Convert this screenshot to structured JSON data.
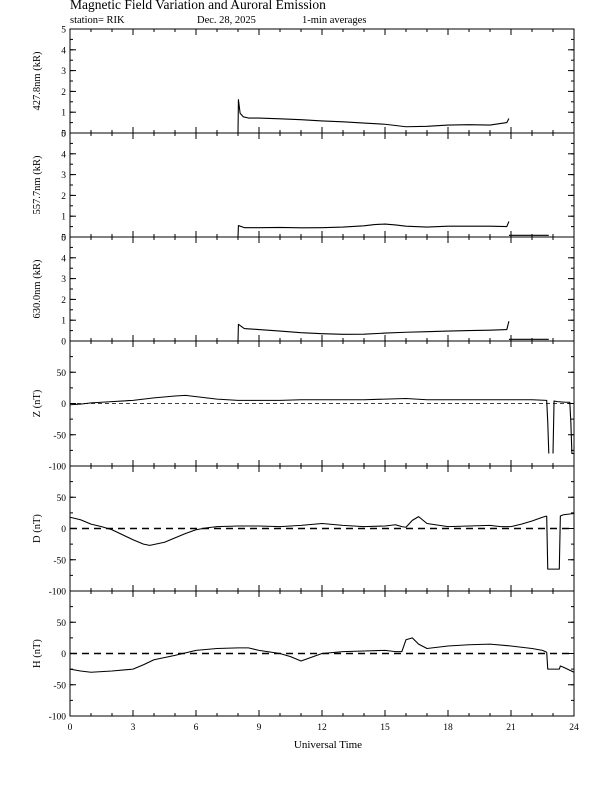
{
  "header": {
    "title": "Magnetic Field Variation and Auroral Emission",
    "station": "station= RIK",
    "date": "Dec. 28, 2025",
    "averaging": "1-min averages"
  },
  "chart_data": [
    {
      "type": "line",
      "ylabel": "427.8nm (kR)",
      "ylim": [
        0,
        5
      ],
      "yticks": [
        0,
        1,
        2,
        3,
        4,
        5
      ],
      "xlim": [
        0,
        24
      ],
      "zero_line": "none",
      "series": [
        {
          "x": [
            8.0,
            8.02,
            8.1,
            8.25,
            8.5,
            9,
            10,
            11,
            12,
            13,
            14,
            15,
            15.5,
            16,
            17,
            18,
            19,
            20,
            20.8,
            20.9
          ],
          "y": [
            0.0,
            1.6,
            0.95,
            0.78,
            0.72,
            0.72,
            0.68,
            0.64,
            0.58,
            0.54,
            0.48,
            0.42,
            0.36,
            0.3,
            0.32,
            0.38,
            0.4,
            0.38,
            0.5,
            0.7
          ]
        }
      ]
    },
    {
      "type": "line",
      "ylabel": "557.7nm (kR)",
      "ylim": [
        0,
        5
      ],
      "yticks": [
        0,
        1,
        2,
        3,
        4,
        5
      ],
      "xlim": [
        0,
        24
      ],
      "zero_line": "none",
      "series": [
        {
          "x": [
            8.0,
            8.02,
            8.3,
            9,
            10,
            11,
            12,
            13,
            14,
            14.5,
            15,
            15.5,
            16,
            17,
            18,
            19,
            20,
            20.8,
            20.9
          ],
          "y": [
            0.0,
            0.55,
            0.45,
            0.45,
            0.46,
            0.44,
            0.45,
            0.48,
            0.54,
            0.6,
            0.62,
            0.58,
            0.52,
            0.48,
            0.52,
            0.52,
            0.52,
            0.5,
            0.75
          ]
        },
        {
          "x": [
            20.9,
            22.8
          ],
          "y": [
            0.08,
            0.08
          ]
        }
      ]
    },
    {
      "type": "line",
      "ylabel": "630.0nm (kR)",
      "ylim": [
        0,
        5
      ],
      "yticks": [
        0,
        1,
        2,
        3,
        4,
        5
      ],
      "xlim": [
        0,
        24
      ],
      "zero_line": "none",
      "series": [
        {
          "x": [
            8.0,
            8.02,
            8.3,
            9,
            10,
            11,
            12,
            13,
            14,
            15,
            16,
            17,
            18,
            19,
            20,
            20.8,
            20.9
          ],
          "y": [
            0.0,
            0.8,
            0.6,
            0.55,
            0.48,
            0.4,
            0.35,
            0.32,
            0.33,
            0.38,
            0.42,
            0.45,
            0.48,
            0.5,
            0.52,
            0.55,
            0.95
          ]
        },
        {
          "x": [
            20.9,
            22.8
          ],
          "y": [
            0.08,
            0.08
          ]
        }
      ]
    },
    {
      "type": "line",
      "ylabel": "Z (nT)",
      "ylim": [
        -100,
        100
      ],
      "yticks": [
        -100,
        -50,
        0,
        50
      ],
      "xlim": [
        0,
        24
      ],
      "zero_line": "thin",
      "series": [
        {
          "x": [
            0,
            0.5,
            1,
            2,
            3,
            4,
            5,
            5.5,
            6,
            7,
            8,
            9,
            10,
            11,
            12,
            13,
            14,
            15,
            16,
            17,
            18,
            19,
            20,
            21,
            22,
            22.7,
            22.75,
            22.8
          ],
          "y": [
            -2,
            -1,
            1,
            3,
            5,
            9,
            12,
            13,
            11,
            7,
            5,
            5,
            5,
            6,
            6,
            6,
            6,
            7,
            8,
            6,
            6,
            6,
            6,
            6,
            6,
            5,
            -30,
            -80
          ]
        },
        {
          "x": [
            23.0,
            23.05,
            23.2,
            23.6,
            23.8,
            23.85,
            23.9,
            24.0
          ],
          "y": [
            -80,
            4,
            3,
            2,
            2,
            -30,
            -80,
            -80
          ]
        }
      ]
    },
    {
      "type": "line",
      "ylabel": "D (nT)",
      "ylim": [
        -100,
        100
      ],
      "yticks": [
        -100,
        -50,
        0,
        50
      ],
      "xlim": [
        0,
        24
      ],
      "zero_line": "thick",
      "series": [
        {
          "x": [
            0,
            0.5,
            1,
            1.5,
            2,
            2.5,
            3,
            3.5,
            3.8,
            4.5,
            5,
            5.5,
            6,
            6.5,
            7,
            8,
            9,
            10,
            11,
            12,
            13,
            14,
            15,
            15.5,
            15.8,
            16.0,
            16.3,
            16.6,
            17,
            18,
            19,
            20,
            20.5,
            21,
            21.5,
            22,
            22.5,
            22.7
          ],
          "y": [
            18,
            14,
            7,
            3,
            -2,
            -10,
            -18,
            -25,
            -27,
            -22,
            -15,
            -8,
            -2,
            1,
            3,
            4,
            4,
            3,
            5,
            8,
            5,
            3,
            4,
            6,
            3,
            2,
            13,
            19,
            8,
            3,
            4,
            5,
            3,
            3,
            7,
            12,
            18,
            20
          ]
        },
        {
          "x": [
            22.7,
            22.75,
            22.8,
            23.3,
            23.35,
            23.5,
            24.0
          ],
          "y": [
            20,
            -65,
            -65,
            -65,
            20,
            22,
            24
          ]
        }
      ]
    },
    {
      "type": "line",
      "ylabel": "H (nT)",
      "ylim": [
        -100,
        100
      ],
      "yticks": [
        -100,
        -50,
        0,
        50
      ],
      "xlim": [
        0,
        24
      ],
      "zero_line": "thick",
      "series": [
        {
          "x": [
            0,
            0.5,
            1,
            2,
            3,
            3.5,
            4,
            5,
            6,
            7,
            8,
            8.5,
            9,
            10,
            10.5,
            11,
            12,
            13,
            14,
            15,
            15.5,
            15.8,
            16.0,
            16.3,
            16.6,
            17,
            18,
            19,
            20,
            21,
            22,
            22.5,
            22.7
          ],
          "y": [
            -25,
            -28,
            -30,
            -28,
            -25,
            -18,
            -10,
            -3,
            5,
            8,
            9,
            9,
            5,
            0,
            -5,
            -12,
            0,
            3,
            4,
            5,
            3,
            3,
            22,
            25,
            15,
            8,
            12,
            14,
            15,
            12,
            8,
            5,
            2
          ]
        },
        {
          "x": [
            22.7,
            22.75,
            22.8,
            23.3,
            23.35,
            23.5,
            24.0
          ],
          "y": [
            2,
            -25,
            -25,
            -25,
            -20,
            -22,
            -30
          ]
        }
      ]
    }
  ],
  "x_axis": {
    "ticks": [
      0,
      3,
      6,
      9,
      12,
      15,
      18,
      21,
      24
    ],
    "label": "Universal Time"
  }
}
